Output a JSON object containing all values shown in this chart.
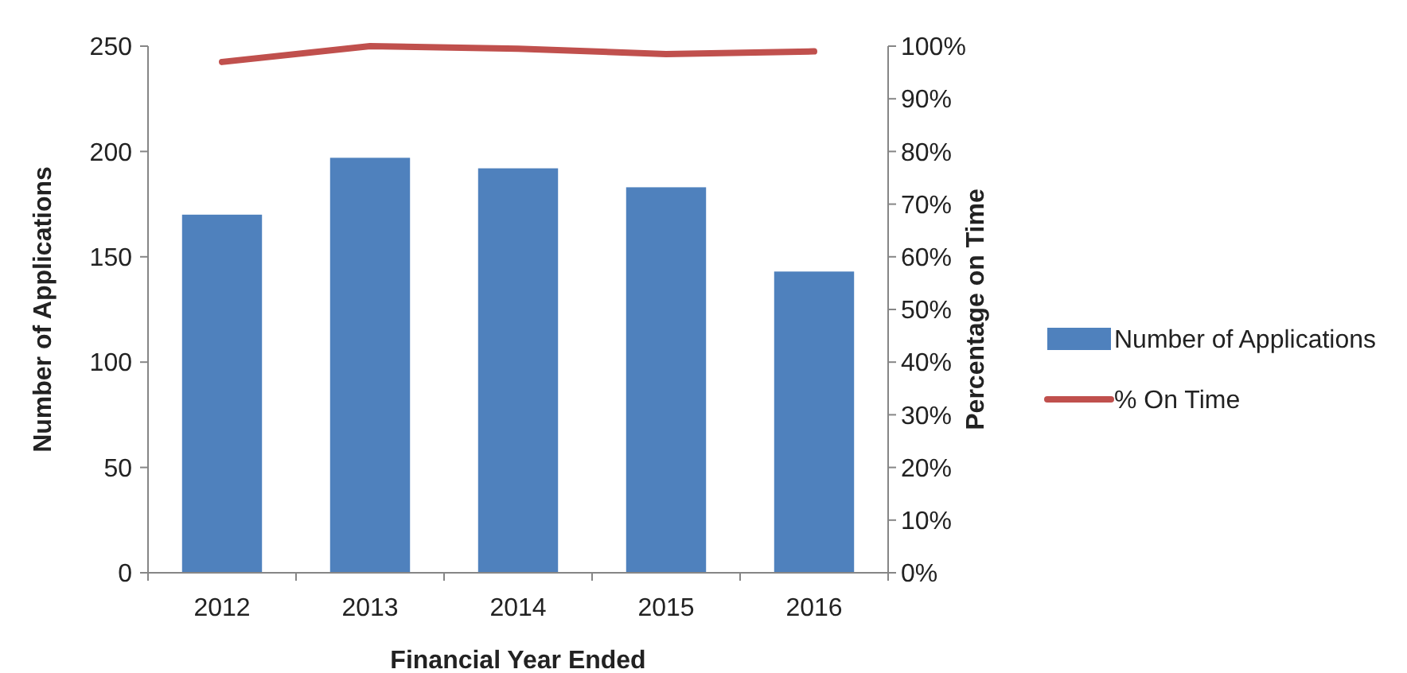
{
  "chart_data": {
    "type": "bar",
    "xlabel": "Financial Year Ended",
    "ylabel": "Number of Applications",
    "y2label": "Percentage on Time",
    "categories": [
      "2012",
      "2013",
      "2014",
      "2015",
      "2016"
    ],
    "series": [
      {
        "name": "Number of Applications",
        "color": "#4f81bd",
        "values": [
          170,
          197,
          192,
          183,
          143
        ]
      },
      {
        "name": "% On Time",
        "type": "line",
        "axis": "y2",
        "color": "#c0504d",
        "values": [
          97,
          100,
          99.5,
          98.5,
          99
        ]
      }
    ],
    "ylim": [
      0,
      250
    ],
    "yticks": [
      0,
      50,
      100,
      150,
      200,
      250
    ],
    "y2lim": [
      0,
      100
    ],
    "y2ticks": [
      {
        "value": 0,
        "label": "0%"
      },
      {
        "value": 10,
        "label": "10%"
      },
      {
        "value": 20,
        "label": "20%"
      },
      {
        "value": 30,
        "label": "30%"
      },
      {
        "value": 40,
        "label": "40%"
      },
      {
        "value": 50,
        "label": "50%"
      },
      {
        "value": 60,
        "label": "60%"
      },
      {
        "value": 70,
        "label": "70%"
      },
      {
        "value": 80,
        "label": "80%"
      },
      {
        "value": 90,
        "label": "90%"
      },
      {
        "value": 100,
        "label": "100%"
      }
    ],
    "legend": "right",
    "grid": false
  }
}
